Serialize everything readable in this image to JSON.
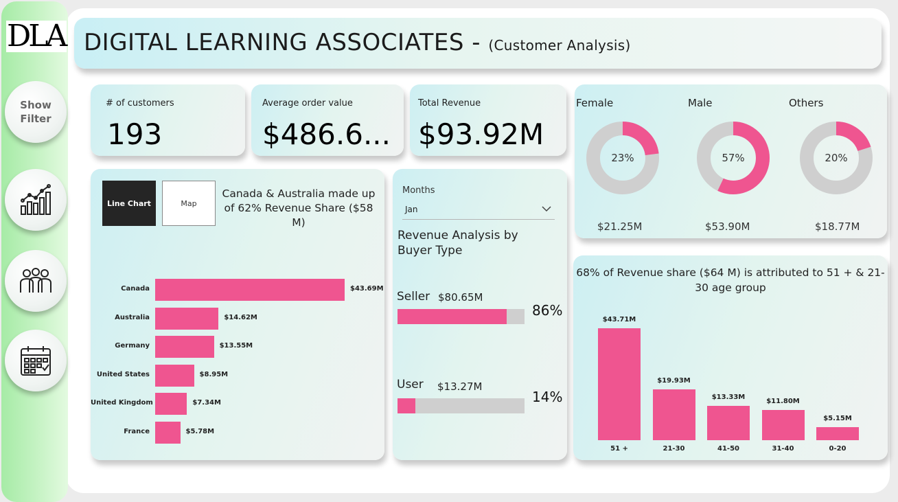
{
  "brand": {
    "logo_text": "DLA",
    "accent": "#ef5590"
  },
  "sidebar": {
    "filter_button": "Show\nFilter",
    "icons": [
      "bar-chart-growth-icon",
      "team-people-icon",
      "calendar-check-icon"
    ]
  },
  "header": {
    "title": "DIGITAL LEARNING ASSOCIATES - ",
    "subtitle": "(Customer Analysis)"
  },
  "kpis": [
    {
      "label": "# of customers",
      "value": "193"
    },
    {
      "label": "Average order value",
      "value": "$486.6..."
    },
    {
      "label": "Total Revenue",
      "value": "$93.92M"
    }
  ],
  "gender": [
    {
      "label": "Female",
      "percent_text": "23%",
      "percent": 23,
      "revenue": "$21.25M"
    },
    {
      "label": "Male",
      "percent_text": "57%",
      "percent": 57,
      "revenue": "$53.90M"
    },
    {
      "label": "Others",
      "percent_text": "20%",
      "percent": 20,
      "revenue": "$18.77M"
    }
  ],
  "country_panel": {
    "tab_line": "Line Chart",
    "tab_map": "Map",
    "note": "Canada & Australia made up of 62% Revenue Share ($58 M)"
  },
  "buyer_panel": {
    "slicer_label": "Months",
    "slicer_value": "Jan",
    "title": "Revenue Analysis by Buyer Type",
    "rows": [
      {
        "name": "Seller",
        "amount": "$80.65M",
        "share": 86,
        "share_text": "86%"
      },
      {
        "name": "User",
        "amount": "$13.27M",
        "share": 14,
        "share_text": "14%"
      }
    ]
  },
  "age_panel": {
    "title": "68% of Revenue share ($64 M) is attributed to 51 +  & 21-30 age group"
  },
  "chart_data": [
    {
      "type": "bar",
      "orientation": "horizontal",
      "categories": [
        "Canada",
        "Australia",
        "Germany",
        "United States",
        "United Kingdom",
        "France"
      ],
      "values": [
        43.69,
        14.62,
        13.55,
        8.95,
        7.34,
        5.78
      ],
      "labels": [
        "$43.69M",
        "$14.62M",
        "$13.55M",
        "$8.95M",
        "$7.34M",
        "$5.78M"
      ],
      "unit": "$M",
      "xlim": [
        0,
        43.69
      ]
    },
    {
      "type": "bar",
      "orientation": "vertical",
      "categories": [
        "51 +",
        "21-30",
        "41-50",
        "31-40",
        "0-20"
      ],
      "values": [
        43.71,
        19.93,
        13.33,
        11.8,
        5.15
      ],
      "labels": [
        "$43.71M",
        "$19.93M",
        "$13.33M",
        "$11.80M",
        "$5.15M"
      ],
      "unit": "$M",
      "ylim": [
        0,
        43.71
      ]
    }
  ]
}
